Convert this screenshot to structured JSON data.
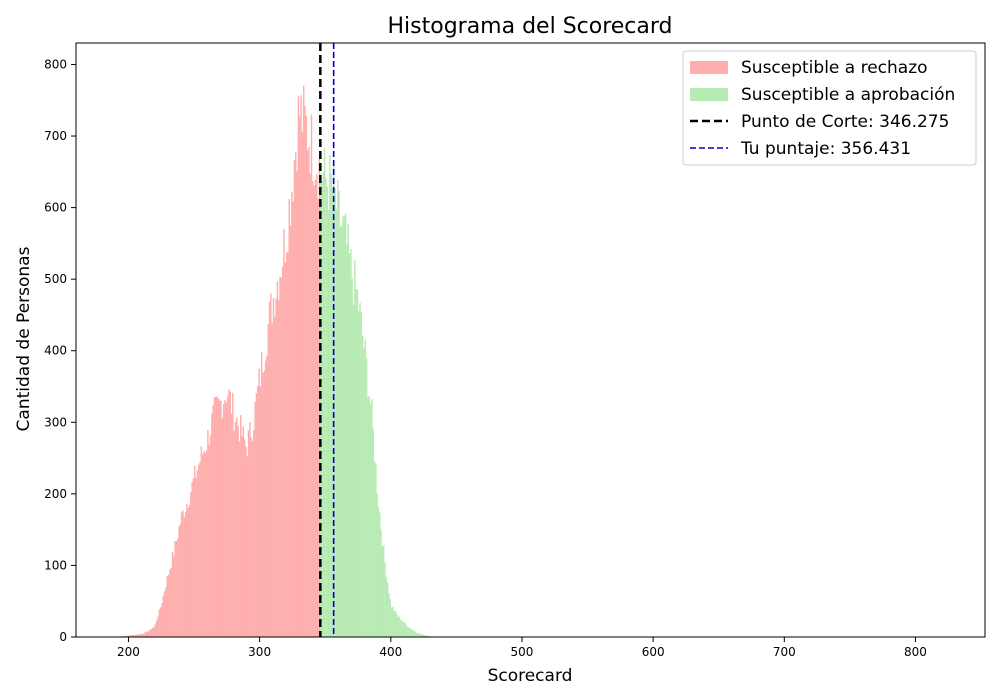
{
  "chart_data": {
    "type": "bar",
    "title": "Histograma del Scorecard",
    "xlabel": "Scorecard",
    "ylabel": "Cantidad de Personas",
    "xlim": [
      160,
      853
    ],
    "ylim": [
      0,
      830
    ],
    "xticks": [
      200,
      300,
      400,
      500,
      600,
      700,
      800
    ],
    "yticks": [
      0,
      100,
      200,
      300,
      400,
      500,
      600,
      700,
      800
    ],
    "grid": false,
    "legend_position": "top-right",
    "colors": {
      "reject": "#ffaeae",
      "approve": "#b8ebb4",
      "cutoff": "#000000",
      "score": "#0000cc"
    },
    "cutoff": 346.275,
    "score": 356.431,
    "bin_width": 1,
    "histogram_profile": [
      [
        190,
        0
      ],
      [
        200,
        2
      ],
      [
        210,
        4
      ],
      [
        215,
        8
      ],
      [
        220,
        15
      ],
      [
        225,
        45
      ],
      [
        228,
        70
      ],
      [
        232,
        100
      ],
      [
        236,
        130
      ],
      [
        240,
        165
      ],
      [
        245,
        190
      ],
      [
        250,
        220
      ],
      [
        255,
        250
      ],
      [
        260,
        275
      ],
      [
        265,
        310
      ],
      [
        270,
        325
      ],
      [
        275,
        345
      ],
      [
        280,
        315
      ],
      [
        285,
        290
      ],
      [
        290,
        265
      ],
      [
        295,
        300
      ],
      [
        300,
        360
      ],
      [
        305,
        420
      ],
      [
        310,
        470
      ],
      [
        315,
        510
      ],
      [
        320,
        560
      ],
      [
        325,
        640
      ],
      [
        330,
        735
      ],
      [
        335,
        715
      ],
      [
        340,
        685
      ],
      [
        345,
        660
      ],
      [
        350,
        640
      ],
      [
        355,
        630
      ],
      [
        360,
        590
      ],
      [
        365,
        560
      ],
      [
        370,
        510
      ],
      [
        375,
        470
      ],
      [
        380,
        400
      ],
      [
        385,
        320
      ],
      [
        390,
        200
      ],
      [
        395,
        110
      ],
      [
        400,
        45
      ],
      [
        405,
        30
      ],
      [
        410,
        20
      ],
      [
        415,
        12
      ],
      [
        420,
        6
      ],
      [
        425,
        3
      ],
      [
        430,
        1
      ],
      [
        440,
        0
      ]
    ],
    "legend": [
      {
        "label": "Susceptible a rechazo",
        "kind": "patch",
        "color": "#ffaeae"
      },
      {
        "label": "Susceptible a aprobación",
        "kind": "patch",
        "color": "#b8ebb4"
      },
      {
        "label": "Punto de Corte: 346.275",
        "kind": "line",
        "color": "#000000"
      },
      {
        "label": "Tu puntaje: 356.431",
        "kind": "line",
        "color": "#0000cc"
      }
    ]
  }
}
